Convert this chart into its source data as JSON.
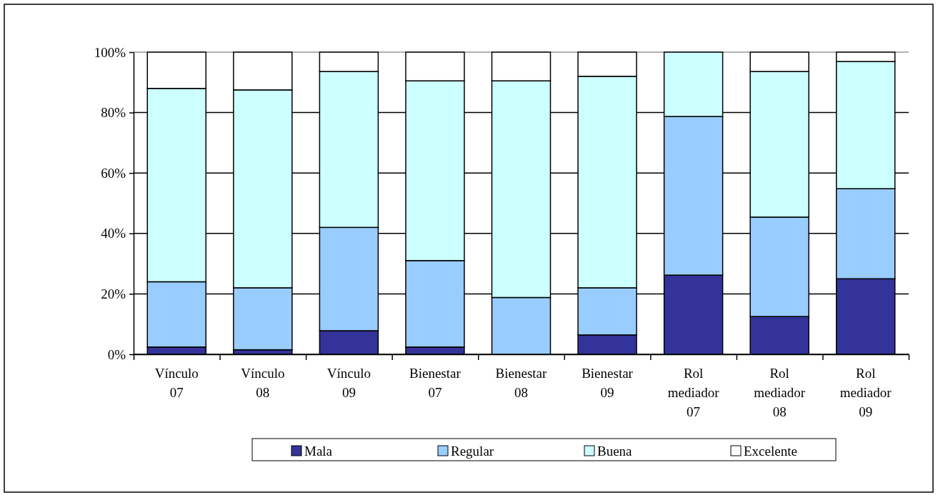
{
  "chart_data": {
    "type": "bar",
    "stacked": true,
    "categories": [
      "Vínculo 07",
      "Vínculo 08",
      "Vínculo 09",
      "Bienestar 07",
      "Bienestar 08",
      "Bienestar 09",
      "Rol mediador 07",
      "Rol mediador 08",
      "Rol mediador 09"
    ],
    "series": [
      {
        "name": "Mala",
        "color": "#333399",
        "values": [
          2.4,
          1.5,
          7.8,
          2.4,
          0,
          6.4,
          26.2,
          12.5,
          25
        ]
      },
      {
        "name": "Regular",
        "color": "#99ccff",
        "values": [
          21.6,
          20.5,
          34.2,
          28.6,
          18.8,
          15.6,
          52.5,
          32.9,
          29.8
        ]
      },
      {
        "name": "Buena",
        "color": "#ccffff",
        "values": [
          64,
          65.5,
          51.6,
          59.5,
          71.7,
          70,
          21.3,
          48.2,
          42.1
        ]
      },
      {
        "name": "Excelente",
        "color": "#ffffff",
        "values": [
          12,
          12.5,
          6.4,
          9.5,
          9.5,
          8,
          0,
          6.4,
          3.1
        ]
      }
    ],
    "ylim": [
      0,
      100
    ],
    "yticks": [
      {
        "value": 0,
        "label": "0%"
      },
      {
        "value": 20,
        "label": "20%"
      },
      {
        "value": 40,
        "label": "40%"
      },
      {
        "value": 60,
        "label": "60%"
      },
      {
        "value": 80,
        "label": "80%"
      },
      {
        "value": 100,
        "label": "100%"
      }
    ],
    "grid": "y",
    "legend": "bottom"
  }
}
